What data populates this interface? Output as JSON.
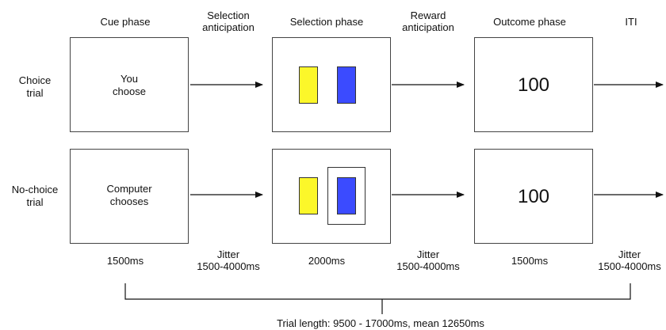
{
  "phases": {
    "cue": "Cue phase",
    "selection_anticipation": [
      "Selection",
      "anticipation"
    ],
    "selection": "Selection phase",
    "reward_anticipation": [
      "Reward",
      "anticipation"
    ],
    "outcome": "Outcome phase",
    "iti": "ITI"
  },
  "rows": {
    "choice": {
      "label": [
        "Choice",
        "trial"
      ],
      "cue_text": [
        "You",
        "choose"
      ],
      "outcome_value": "100",
      "selected_frame": false
    },
    "nochoice": {
      "label": [
        "No-choice",
        "trial"
      ],
      "cue_text": [
        "Computer",
        "chooses"
      ],
      "outcome_value": "100",
      "selected_frame": true
    }
  },
  "timings": {
    "cue": "1500ms",
    "selection_anticipation": [
      "Jitter",
      "1500-4000ms"
    ],
    "selection": "2000ms",
    "reward_anticipation": [
      "Jitter",
      "1500-4000ms"
    ],
    "outcome": "1500ms",
    "iti": [
      "Jitter",
      "1500-4000ms"
    ]
  },
  "trial_length": "Trial length: 9500 - 17000ms, mean 12650ms",
  "colors": {
    "card_left": "#fcf72a",
    "card_right": "#3b4bff",
    "line": "#111111"
  }
}
